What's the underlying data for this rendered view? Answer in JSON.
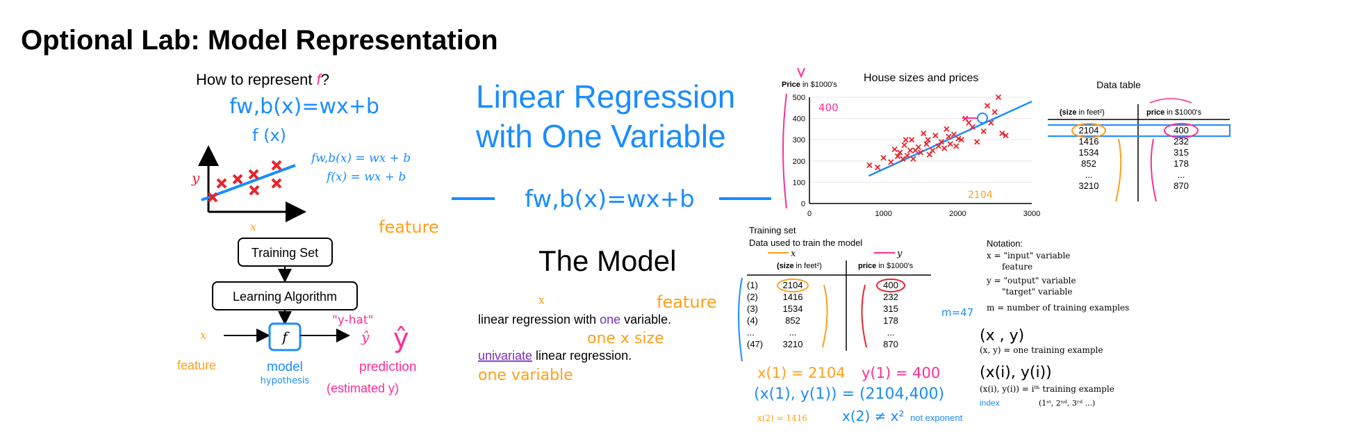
{
  "page_title": "Optional Lab: Model Representation",
  "colors": {
    "blue": "#1a8cff",
    "orange": "#ff9f1a",
    "pink": "#ff2d95",
    "red": "#e8232a",
    "purple": "#7b2fbf"
  },
  "left_panel": {
    "heading": "How to represent ",
    "heading_f": "f",
    "heading_q": "?",
    "fwb_hand": "fw,b(x)=wx+b",
    "fx_hand": "f (x)",
    "fwb_typed": "fw,b(x) = wx + b",
    "fx_typed": "f(x) = wx + b",
    "axis_y": "y",
    "axis_x": "x",
    "feature_top": "feature",
    "training_set": "Training Set",
    "learning_algorithm": "Learning Algorithm",
    "input_x": "x",
    "f_box": "f",
    "y_hat_label": "\"y-hat\"",
    "y_hat_symbol": "ŷ",
    "y_hat_big": "ŷ",
    "feature_bottom": "feature",
    "model": "model",
    "hypothesis": "hypothesis",
    "prediction": "prediction",
    "estimated_y": "(estimated y)"
  },
  "center_panel": {
    "title_line1": "Linear Regression",
    "title_line2": "with One Variable",
    "formula": "fw,b(x)=wx+b",
    "the_model": "The Model",
    "x_small": "x",
    "feature": "feature",
    "lr_prefix": "linear regression with ",
    "lr_one": "one",
    "lr_suffix": " variable.",
    "one_x_size": "one x  size",
    "uni_word": "univariate",
    "uni_suffix": " linear regression.",
    "one_variable": "one  variable"
  },
  "scatter_panel": {
    "title": "House sizes and prices",
    "ylabel_bold": "Price",
    "ylabel_rest": " in $1000's",
    "annot_400": "400",
    "annot_2104": "2104",
    "xticks": [
      "0",
      "1000",
      "2000",
      "3000"
    ],
    "yticks": [
      "0",
      "100",
      "200",
      "300",
      "400",
      "500"
    ]
  },
  "chart_data": {
    "type": "scatter",
    "title": "House sizes and prices",
    "xlabel": "",
    "ylabel": "Price in $1000's",
    "xlim": [
      0,
      3000
    ],
    "ylim": [
      0,
      500
    ],
    "points": [
      [
        810,
        180
      ],
      [
        920,
        170
      ],
      [
        1000,
        215
      ],
      [
        1100,
        195
      ],
      [
        1150,
        255
      ],
      [
        1190,
        222
      ],
      [
        1220,
        240
      ],
      [
        1260,
        210
      ],
      [
        1280,
        275
      ],
      [
        1300,
        300
      ],
      [
        1320,
        225
      ],
      [
        1360,
        250
      ],
      [
        1380,
        300
      ],
      [
        1400,
        210
      ],
      [
        1430,
        250
      ],
      [
        1470,
        265
      ],
      [
        1500,
        240
      ],
      [
        1540,
        330
      ],
      [
        1580,
        280
      ],
      [
        1600,
        300
      ],
      [
        1620,
        230
      ],
      [
        1660,
        250
      ],
      [
        1700,
        320
      ],
      [
        1740,
        270
      ],
      [
        1780,
        290
      ],
      [
        1820,
        260
      ],
      [
        1850,
        350
      ],
      [
        1880,
        315
      ],
      [
        1900,
        280
      ],
      [
        1950,
        325
      ],
      [
        1980,
        270
      ],
      [
        2010,
        305
      ],
      [
        2050,
        300
      ],
      [
        2104,
        400
      ],
      [
        2150,
        380
      ],
      [
        2200,
        360
      ],
      [
        2260,
        290
      ],
      [
        2350,
        340
      ],
      [
        2400,
        460
      ],
      [
        2450,
        380
      ],
      [
        2500,
        430
      ],
      [
        2550,
        500
      ],
      [
        2600,
        330
      ],
      [
        2650,
        320
      ]
    ],
    "fit_line": [
      [
        800,
        130
      ],
      [
        3000,
        480
      ]
    ]
  },
  "data_table": {
    "caption": "Data table",
    "col1_bold": "(size",
    "col1_rest": " in feet²)",
    "col2_bold": "price",
    "col2_rest": " in $1000's",
    "sizes": [
      "2104",
      "1416",
      "1534",
      "852",
      "...",
      "3210"
    ],
    "prices": [
      "400",
      "232",
      "315",
      "178",
      "...",
      "870"
    ]
  },
  "training_panel": {
    "title": "Training set",
    "subtitle": "Data used to train the model",
    "x_label": "x",
    "y_label": "y",
    "col1_bold": "(size",
    "col1_rest": " in feet²)",
    "col2_bold": "price",
    "col2_rest": " in $1000's",
    "indices": [
      "(1)",
      "(2)",
      "(3)",
      "(4)",
      "...",
      "(47)"
    ],
    "sizes": [
      "2104",
      "1416",
      "1534",
      "852",
      "...",
      "3210"
    ],
    "prices": [
      "400",
      "232",
      "315",
      "178",
      "...",
      "870"
    ],
    "m_eq": "m=47",
    "x1_eq": "x(1) = 2104",
    "y1_eq": "y(1) = 400",
    "pair_eq": "(x(1), y(1)) = (2104,400)",
    "x2_eq": "x(2) = 1416",
    "not_exp_eq": "x(2) ≠ x²",
    "not_exponent": "not exponent"
  },
  "notation_panel": {
    "title": "Notation:",
    "l1": "x = \"input\" variable",
    "l1b": "feature",
    "l2": "y = \"output\" variable",
    "l2b": "\"target\" variable",
    "l3": "m = number of training examples",
    "pair_big": "(x , y)",
    "pair_desc": "(x, y) = one training example",
    "pair_i_big": "(x(i), y(i))",
    "pair_i_desc": "(x(i), y(i)) = iᵗʰ training example",
    "index": "index",
    "ordinal": "(1ˢᵗ, 2ⁿᵈ, 3ʳᵈ ...)"
  }
}
